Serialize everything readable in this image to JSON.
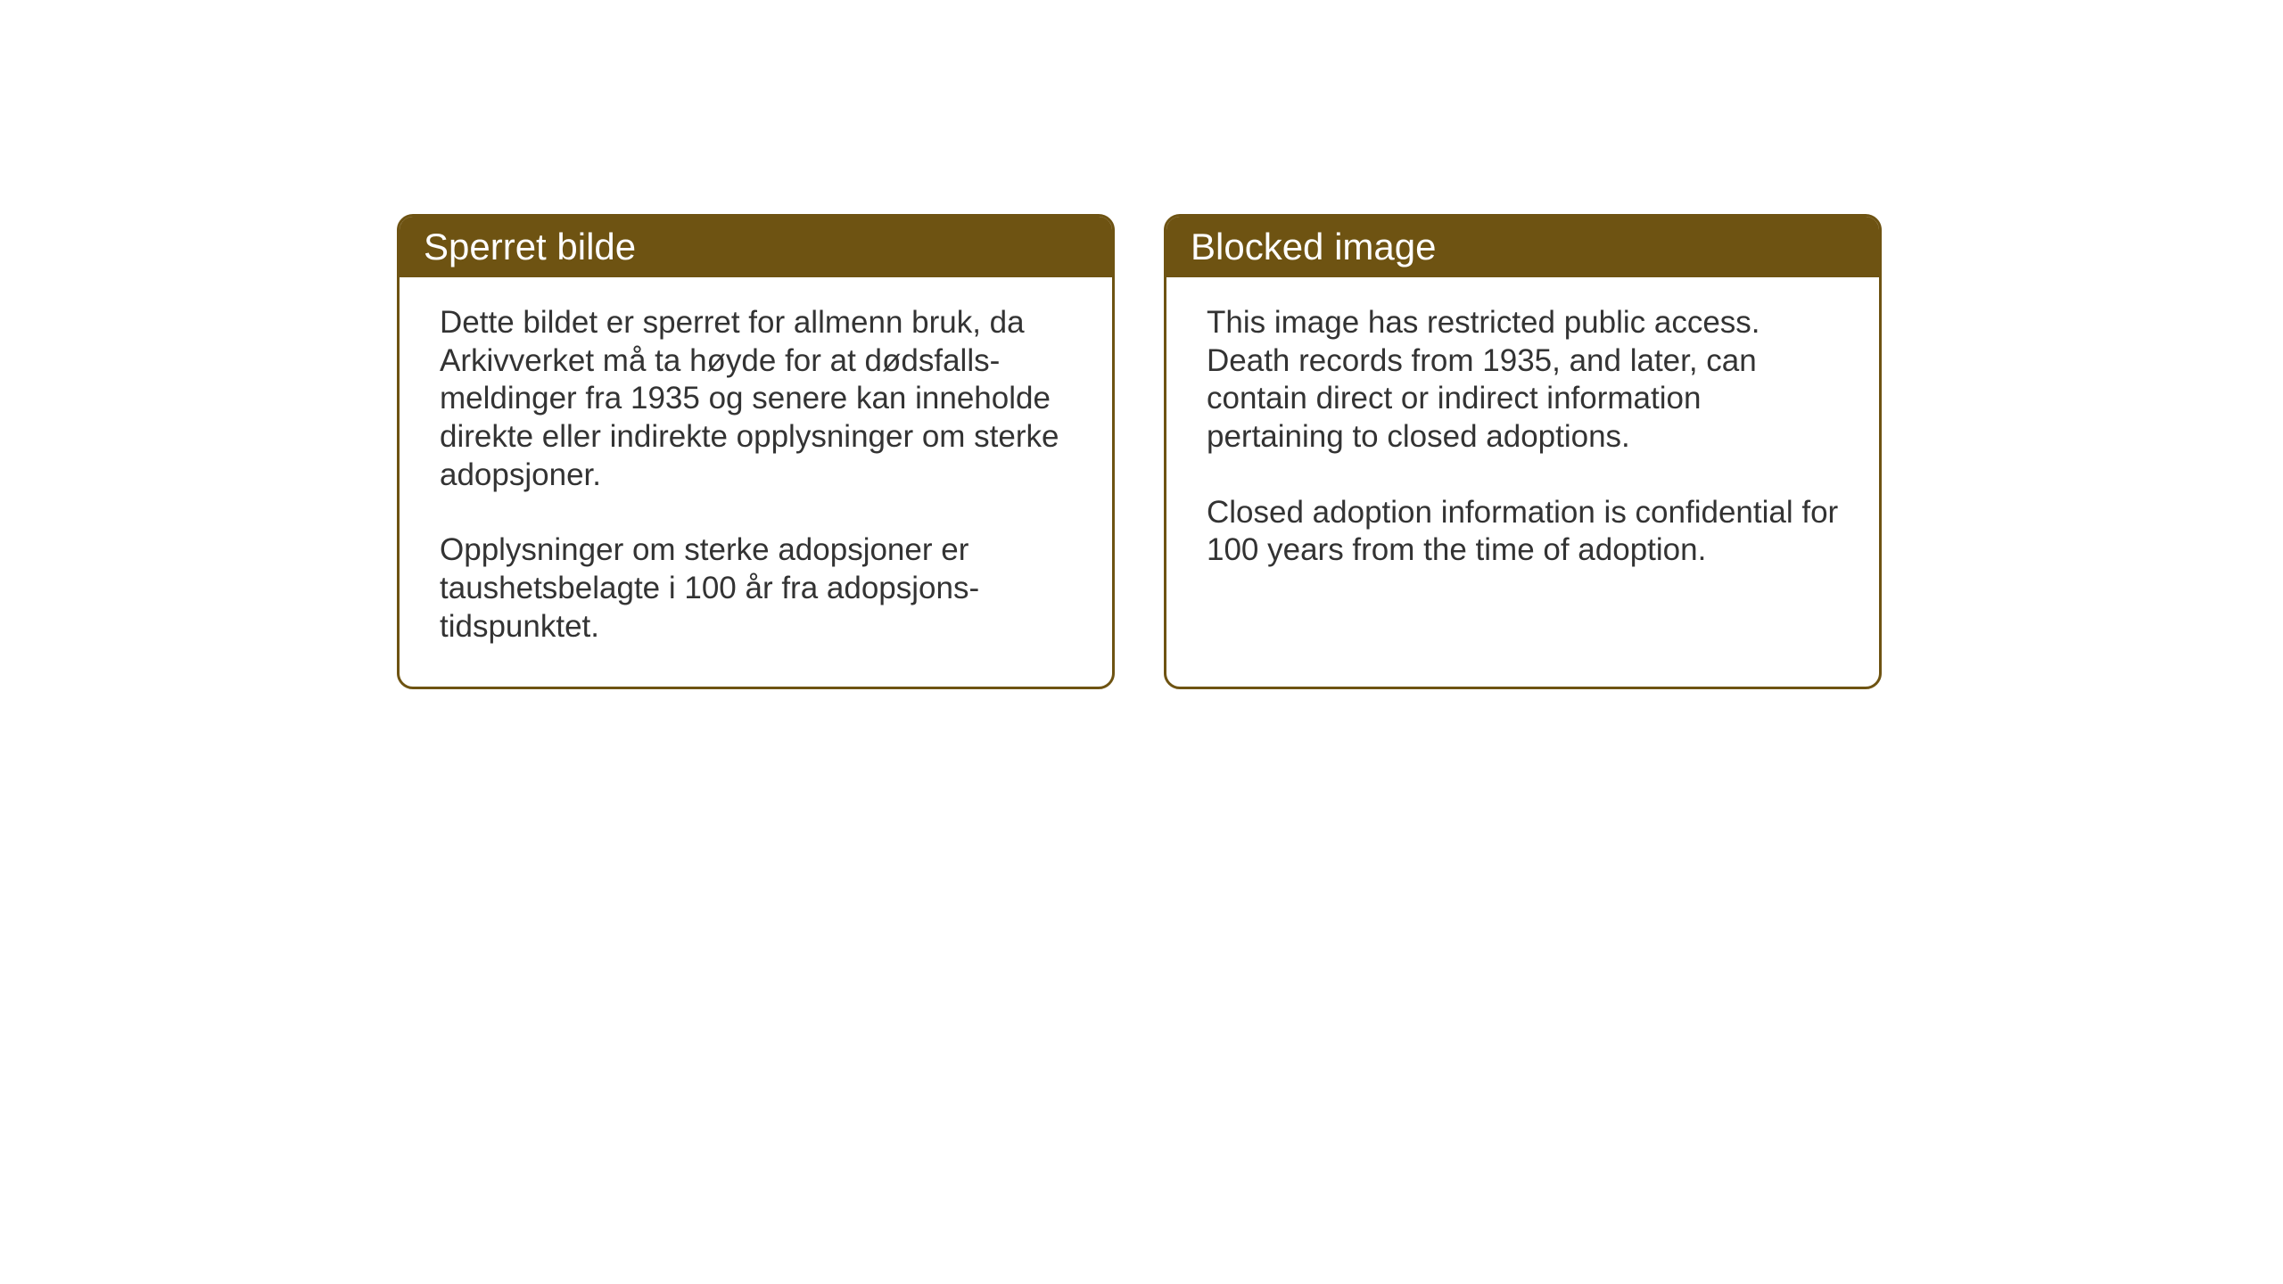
{
  "background_color": "#ffffff",
  "card_border_color": "#6e5312",
  "card_header_bg": "#6e5312",
  "card_header_text_color": "#ffffff",
  "body_text_color": "#333333",
  "header_fontsize": 42,
  "body_fontsize": 35,
  "card_border_radius": 18,
  "card_border_width": 3,
  "cards": {
    "norwegian": {
      "title": "Sperret bilde",
      "paragraph1": "Dette bildet er sperret for allmenn bruk, da Arkivverket må ta høyde for at dødsfalls-meldinger fra 1935 og senere kan inneholde direkte eller indirekte opplysninger om sterke adopsjoner.",
      "paragraph2": "Opplysninger om sterke adopsjoner er taushetsbelagte i 100 år fra adopsjons-tidspunktet."
    },
    "english": {
      "title": "Blocked image",
      "paragraph1": "This image has restricted public access. Death records from 1935, and later, can contain direct or indirect information pertaining to closed adoptions.",
      "paragraph2": "Closed adoption information is confidential for 100 years from the time of adoption."
    }
  }
}
